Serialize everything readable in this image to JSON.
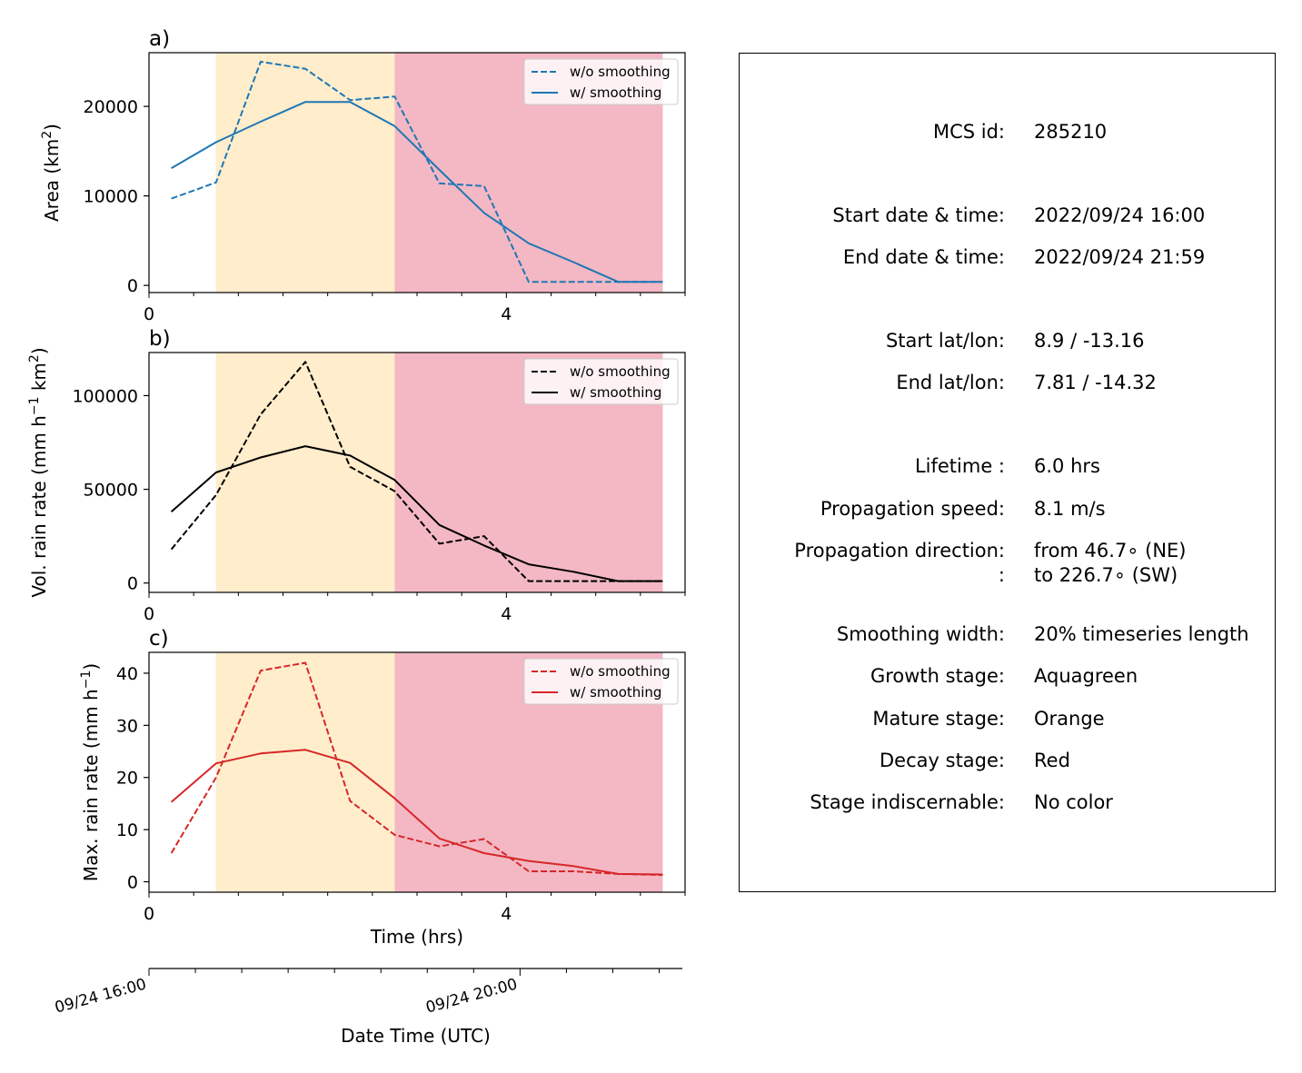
{
  "chart_data": [
    {
      "type": "line",
      "panel_label": "a)",
      "ylabel": "Area  (km²)",
      "ylabel_parts": [
        "Area  (km",
        "2",
        ")"
      ],
      "ylim": [
        -800,
        26000
      ],
      "yticks": [
        0,
        10000,
        20000
      ],
      "xlim": [
        0,
        6
      ],
      "xticks": [
        0,
        4
      ],
      "x": [
        0.25,
        0.75,
        1.25,
        1.75,
        2.25,
        2.75,
        3.25,
        3.75,
        4.25,
        4.75,
        5.25,
        5.75
      ],
      "stage_bands": [
        {
          "from": 0.75,
          "to": 2.75,
          "color": "#ffedcc"
        },
        {
          "from": 2.75,
          "to": 5.75,
          "color": "#f3b8c4"
        }
      ],
      "series": [
        {
          "name": "w/o smoothing",
          "style": "dashed",
          "color": "#1f77b4",
          "values": [
            9700,
            11500,
            25000,
            24200,
            20700,
            21100,
            11400,
            11100,
            400,
            400,
            400,
            400
          ]
        },
        {
          "name": "w/ smoothing",
          "style": "solid",
          "color": "#1f77b4",
          "values": [
            13100,
            16000,
            18300,
            20500,
            20500,
            17800,
            12900,
            8100,
            4700,
            2600,
            400,
            400
          ]
        }
      ]
    },
    {
      "type": "line",
      "panel_label": "b)",
      "ylabel": "Vol. rain rate (mm h⁻¹ km²)",
      "ylabel_parts": [
        "Vol. rain rate (mm h",
        "−1",
        " km",
        "2",
        ")"
      ],
      "ylim": [
        -5000,
        123000
      ],
      "yticks": [
        0,
        50000,
        100000
      ],
      "xlim": [
        0,
        6
      ],
      "xticks": [
        0,
        4
      ],
      "x": [
        0.25,
        0.75,
        1.25,
        1.75,
        2.25,
        2.75,
        3.25,
        3.75,
        4.25,
        4.75,
        5.25,
        5.75
      ],
      "stage_bands": [
        {
          "from": 0.75,
          "to": 2.75,
          "color": "#ffedcc"
        },
        {
          "from": 2.75,
          "to": 5.75,
          "color": "#f3b8c4"
        }
      ],
      "series": [
        {
          "name": "w/o smoothing",
          "style": "dashed",
          "color": "#000000",
          "values": [
            18000,
            47000,
            90000,
            118000,
            62000,
            49000,
            21000,
            25000,
            1000,
            1000,
            1000,
            1000
          ]
        },
        {
          "name": "w/ smoothing",
          "style": "solid",
          "color": "#000000",
          "values": [
            38000,
            59000,
            67000,
            73000,
            68000,
            55000,
            31000,
            20000,
            10000,
            6000,
            1000,
            1000
          ]
        }
      ]
    },
    {
      "type": "line",
      "panel_label": "c)",
      "ylabel": "Max. rain rate  (mm h⁻¹)",
      "ylabel_parts": [
        "Max. rain rate  (mm h",
        "−1",
        ")"
      ],
      "xlabel": "Time (hrs)",
      "ylim": [
        -2,
        44
      ],
      "yticks": [
        0,
        10,
        20,
        30,
        40
      ],
      "xlim": [
        0,
        6
      ],
      "xticks": [
        0,
        4
      ],
      "x": [
        0.25,
        0.75,
        1.25,
        1.75,
        2.25,
        2.75,
        3.25,
        3.75,
        4.25,
        4.75,
        5.25,
        5.75
      ],
      "stage_bands": [
        {
          "from": 0.75,
          "to": 2.75,
          "color": "#ffedcc"
        },
        {
          "from": 2.75,
          "to": 5.75,
          "color": "#f3b8c4"
        }
      ],
      "series": [
        {
          "name": "w/o smoothing",
          "style": "dashed",
          "color": "#d62728",
          "values": [
            5.5,
            20,
            40.5,
            42,
            15.5,
            9,
            6.8,
            8.2,
            2,
            2,
            1.5,
            1.3
          ]
        },
        {
          "name": "w/ smoothing",
          "style": "solid",
          "color": "#d62728",
          "values": [
            15.3,
            22.7,
            24.6,
            25.3,
            22.8,
            16,
            8.3,
            5.5,
            4,
            3,
            1.5,
            1.4
          ]
        }
      ]
    }
  ],
  "datetime_axis": {
    "xlabel": "Date Time (UTC)",
    "tick_labels": [
      "09/24 16:00",
      "09/24 20:00"
    ],
    "tick_hours": [
      0,
      4
    ]
  },
  "info_panel": {
    "rows": [
      {
        "label": "MCS id:",
        "value": "285210"
      },
      {
        "label": "Start date & time:",
        "value": "2022/09/24 16:00"
      },
      {
        "label": "End date & time:",
        "value": "2022/09/24 21:59"
      },
      {
        "label": "Start lat/lon:",
        "value": "8.9 / -13.16"
      },
      {
        "label": "End lat/lon:",
        "value": "7.81 / -14.32"
      },
      {
        "label": "Lifetime :",
        "value": "6.0 hrs"
      },
      {
        "label": "Propagation speed:",
        "value": "8.1 m/s"
      },
      {
        "label": "Propagation direction:",
        "value": "from  46.7∘ (NE)"
      },
      {
        "label": ":",
        "value": "to   226.7∘ (SW)"
      },
      {
        "label": "Smoothing width:",
        "value": "20% timeseries length"
      },
      {
        "label": "Growth stage:",
        "value": "Aquagreen"
      },
      {
        "label": "Mature stage:",
        "value": "Orange"
      },
      {
        "label": "Decay stage:",
        "value": "Red"
      },
      {
        "label": "Stage indiscernable:",
        "value": "No color"
      }
    ]
  }
}
